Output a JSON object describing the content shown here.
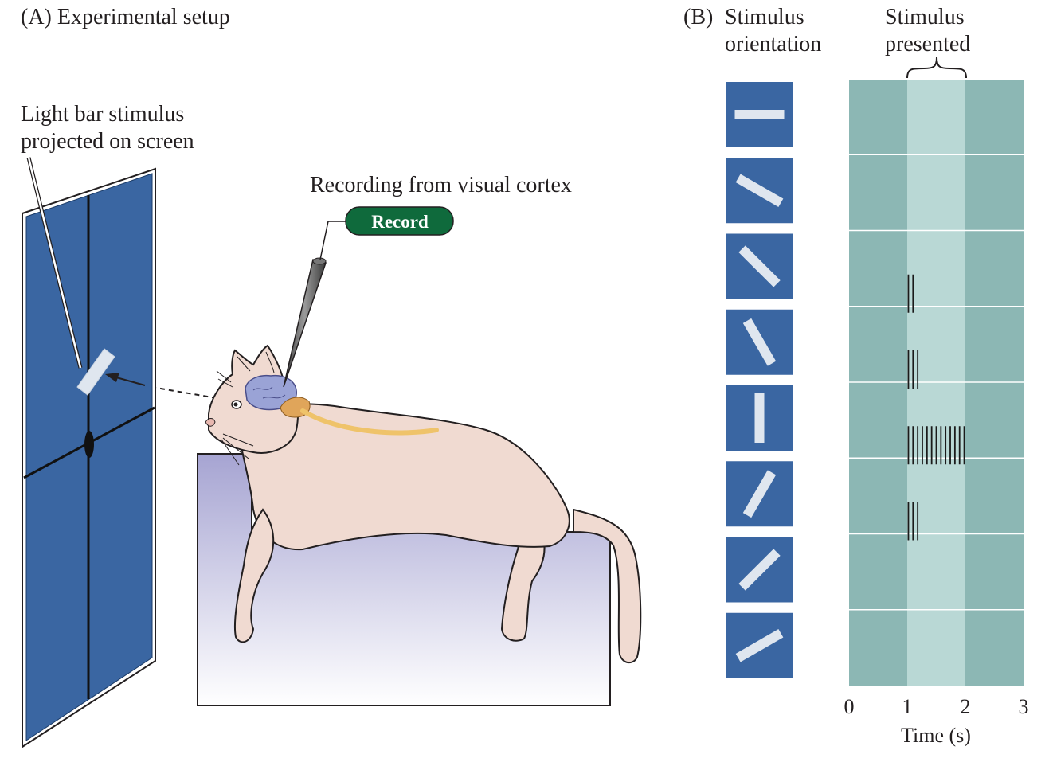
{
  "panel_a": {
    "title": "(A)  Experimental setup",
    "stimulus_label_line1": "Light bar stimulus",
    "stimulus_label_line2": "projected on screen",
    "recording_label": "Recording from visual cortex",
    "record_button": "Record"
  },
  "panel_b": {
    "title_prefix": "(B)",
    "orientation_header_line1": "Stimulus",
    "orientation_header_line2": "orientation",
    "presented_header_line1": "Stimulus",
    "presented_header_line2": "presented",
    "x_ticks": [
      "0",
      "1",
      "2",
      "3"
    ],
    "x_label": "Time (s)"
  },
  "colors": {
    "screen_blue": "#3a6aa3",
    "record_green": "#0f6a3c",
    "raster_bg": "#8cb7b4",
    "stim_window": "#b9d8d5",
    "cat_fill": "#f0dad1",
    "platform_top": "#a8a6d3"
  },
  "chart_data": {
    "type": "raster",
    "x": {
      "label": "Time (s)",
      "range": [
        0,
        3
      ],
      "ticks": [
        0,
        1,
        2,
        3
      ]
    },
    "stimulus_window": [
      1,
      2
    ],
    "orientations_deg": [
      0,
      30,
      45,
      60,
      90,
      120,
      135,
      150
    ],
    "spike_times": [
      [],
      [],
      [
        1.02,
        1.1
      ],
      [
        1.02,
        1.1,
        1.18
      ],
      [
        1.02,
        1.1,
        1.18,
        1.26,
        1.34,
        1.42,
        1.5,
        1.58,
        1.66,
        1.74,
        1.82,
        1.9,
        1.98
      ],
      [
        1.02,
        1.1,
        1.18
      ],
      [],
      []
    ]
  }
}
